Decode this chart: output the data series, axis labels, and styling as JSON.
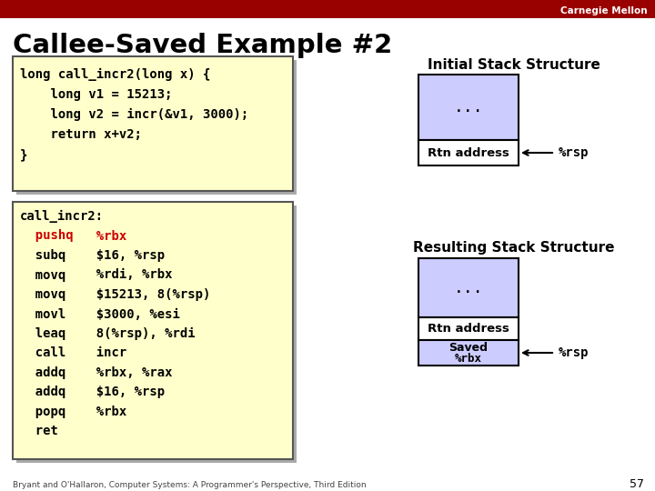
{
  "title": "Callee-Saved Example #2",
  "bg_color": "#ffffff",
  "header_bar_color": "#990000",
  "header_text": "Carnegie Mellon",
  "slide_number": "57",
  "footer_text": "Bryant and O'Hallaron, Computer Systems: A Programmer's Perspective, Third Edition",
  "code_box1_bg": "#ffffcc",
  "code_box1_border": "#555555",
  "code_box1_lines": [
    {
      "text": "long call_incr2(long x) {",
      "color": "#000000"
    },
    {
      "text": "    long v1 = 15213;",
      "color": "#000000"
    },
    {
      "text": "    long v2 = incr(&v1, 3000);",
      "color": "#000000"
    },
    {
      "text": "    return x+v2;",
      "color": "#000000"
    },
    {
      "text": "}",
      "color": "#000000"
    }
  ],
  "code_box2_bg": "#ffffcc",
  "code_box2_border": "#555555",
  "code_box2_lines": [
    {
      "instr": "call_incr2:",
      "instr_color": "#000000",
      "arg": "",
      "arg_color": "#000000"
    },
    {
      "instr": "  pushq",
      "instr_color": "#cc0000",
      "arg": "  %rbx",
      "arg_color": "#cc0000"
    },
    {
      "instr": "  subq",
      "instr_color": "#000000",
      "arg": "  $16, %rsp",
      "arg_color": "#000000"
    },
    {
      "instr": "  movq",
      "instr_color": "#000000",
      "arg": "  %rdi, %rbx",
      "arg_color": "#000000"
    },
    {
      "instr": "  movq",
      "instr_color": "#000000",
      "arg": "  $15213, 8(%rsp)",
      "arg_color": "#000000"
    },
    {
      "instr": "  movl",
      "instr_color": "#000000",
      "arg": "  $3000, %esi",
      "arg_color": "#000000"
    },
    {
      "instr": "  leaq",
      "instr_color": "#000000",
      "arg": "  8(%rsp), %rdi",
      "arg_color": "#000000"
    },
    {
      "instr": "  call",
      "instr_color": "#000000",
      "arg": "  incr",
      "arg_color": "#000000"
    },
    {
      "instr": "  addq",
      "instr_color": "#000000",
      "arg": "  %rbx, %rax",
      "arg_color": "#000000"
    },
    {
      "instr": "  addq",
      "instr_color": "#000000",
      "arg": "  $16, %rsp",
      "arg_color": "#000000"
    },
    {
      "instr": "  popq",
      "instr_color": "#000000",
      "arg": "  %rbx",
      "arg_color": "#000000"
    },
    {
      "instr": "  ret",
      "instr_color": "#000000",
      "arg": "",
      "arg_color": "#000000"
    }
  ],
  "stack_fill_blue": "#ccccff",
  "stack_fill_white": "#ffffff",
  "stack_border": "#000000",
  "initial_stack_title": "Initial Stack Structure",
  "resulting_stack_title": "Resulting Stack Structure"
}
